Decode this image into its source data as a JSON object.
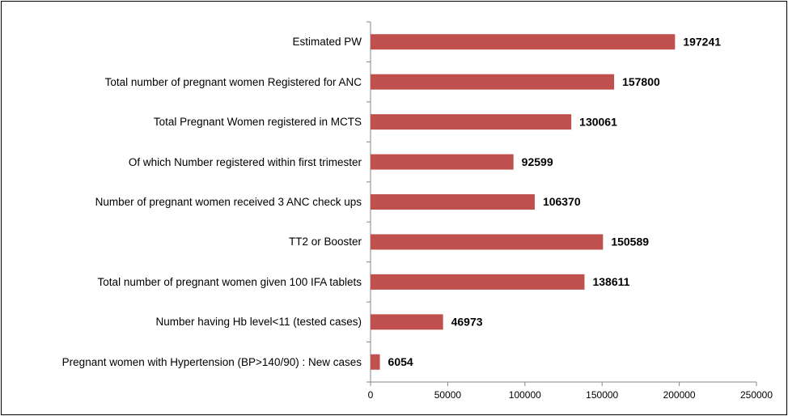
{
  "chart_data": {
    "type": "bar",
    "orientation": "horizontal",
    "categories": [
      "Estimated PW",
      "Total number of pregnant women Registered for ANC",
      "Total Pregnant Women registered in MCTS",
      "Of which Number registered within first trimester",
      "Number of pregnant women received 3 ANC check ups",
      "TT2 or Booster",
      "Total number of pregnant women given 100 IFA tablets",
      "Number having Hb level<11 (tested cases)",
      "Pregnant women with Hypertension (BP>140/90) : New cases"
    ],
    "values": [
      197241,
      157800,
      130061,
      92599,
      106370,
      150589,
      138611,
      46973,
      6054
    ],
    "color": "#c0504d",
    "xlim": [
      0,
      250000
    ],
    "xticks": [
      0,
      50000,
      100000,
      150000,
      200000,
      250000
    ],
    "grid": false
  }
}
